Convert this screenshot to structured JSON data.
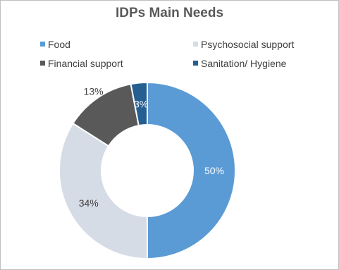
{
  "chart_data": {
    "type": "pie",
    "title": "IDPs Main Needs",
    "categories": [
      "Food",
      "Psychosocial support",
      "Financial support",
      "Sanitation/ Hygiene"
    ],
    "values": [
      50,
      34,
      13,
      3
    ],
    "value_labels": [
      "50%",
      "34%",
      "13%",
      "3%"
    ],
    "colors": [
      "#5b9bd5",
      "#d6dce5",
      "#595959",
      "#255e91"
    ],
    "label_colors": [
      "#ffffff",
      "#404040",
      "#404040",
      "#ffffff"
    ],
    "donut": true,
    "legend_position": "top"
  }
}
